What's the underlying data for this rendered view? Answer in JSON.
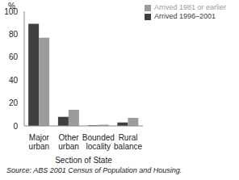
{
  "chart_data": {
    "type": "bar",
    "ylabel": "%",
    "xlabel": "Section of State",
    "annotation": "Source: ABS 2001 Census of Population and Housing.",
    "categories": [
      "Major urban",
      "Other urban",
      "Bounded locality",
      "Rural balance"
    ],
    "series": [
      {
        "name": "Arrived 1996–2001",
        "color": "#404040",
        "values": [
          89,
          8,
          0.5,
          3
        ]
      },
      {
        "name": "Arrived 1981 or earlier",
        "color": "#9c9c9c",
        "values": [
          77,
          14,
          1,
          7
        ]
      }
    ],
    "ylim": [
      0,
      100
    ],
    "yticks": [
      0,
      20,
      40,
      60,
      80,
      100
    ],
    "legend": "upper right"
  }
}
